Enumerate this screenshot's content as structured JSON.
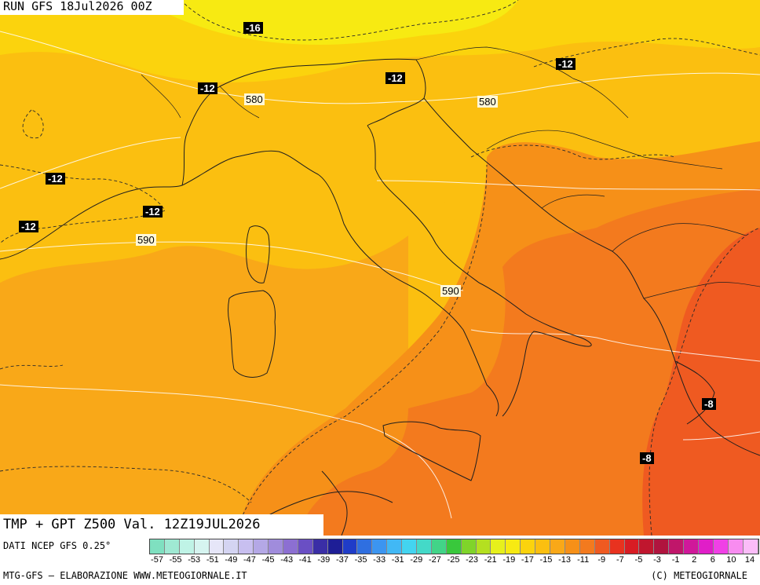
{
  "header": {
    "run_label": "RUN GFS 18Jul2026 00Z"
  },
  "map": {
    "valid_label": "TMP + GPT Z500 Val. 12Z19JUL2026",
    "temperature_labels": [
      "-16",
      "-12",
      "-12",
      "-12",
      "-12",
      "-12",
      "-12",
      "-8",
      "-8"
    ],
    "geopotential_labels": [
      "580",
      "580",
      "590",
      "590"
    ],
    "colors": {
      "yellow": "#f7ea12",
      "yellow_orange": "#fbd30d",
      "orange_light": "#fbbf10",
      "orange": "#f9a818",
      "orange_dark": "#f69018",
      "red_orange": "#f37a1e",
      "red": "#ef5a21"
    }
  },
  "footer": {
    "source_label": "DATI NCEP GFS 0.25°",
    "legend_ticks": [
      "-57",
      "-55",
      "-53",
      "-51",
      "-49",
      "-47",
      "-45",
      "-43",
      "-41",
      "-39",
      "-37",
      "-35",
      "-33",
      "-31",
      "-29",
      "-27",
      "-25",
      "-23",
      "-21",
      "-19",
      "-17",
      "-15",
      "-13",
      "-11",
      "-9",
      "-7",
      "-5",
      "-3",
      "-1",
      "2",
      "6",
      "10",
      "14"
    ],
    "legend_colors": [
      "#7fe0c0",
      "#9fe9d3",
      "#bff3e6",
      "#d6f4f0",
      "#e6e6f8",
      "#d4d4f2",
      "#c8bff0",
      "#b4a8e6",
      "#a08cdc",
      "#8c6fd2",
      "#6a4fc4",
      "#3a2ea6",
      "#1e1e96",
      "#1f3cc8",
      "#2f6fe0",
      "#3c95f0",
      "#41b8f5",
      "#43d4f0",
      "#44d9c8",
      "#42d488",
      "#39c83c",
      "#7fd42a",
      "#b4e020",
      "#e6f01c",
      "#f7ea12",
      "#fbd30d",
      "#fbbf10",
      "#f9a818",
      "#f69018",
      "#f37a1e",
      "#ef5a21",
      "#e8321f",
      "#d81c24",
      "#c0162e",
      "#b0143e",
      "#c0166a",
      "#d0189a",
      "#e01ec8",
      "#f040e6",
      "#f88cf0",
      "#fbbcf8"
    ],
    "credit_left": "MTG-GFS – ELABORAZIONE WWW.METEOGIORNALE.IT",
    "credit_right": "(C) METEOGIORNALE"
  }
}
